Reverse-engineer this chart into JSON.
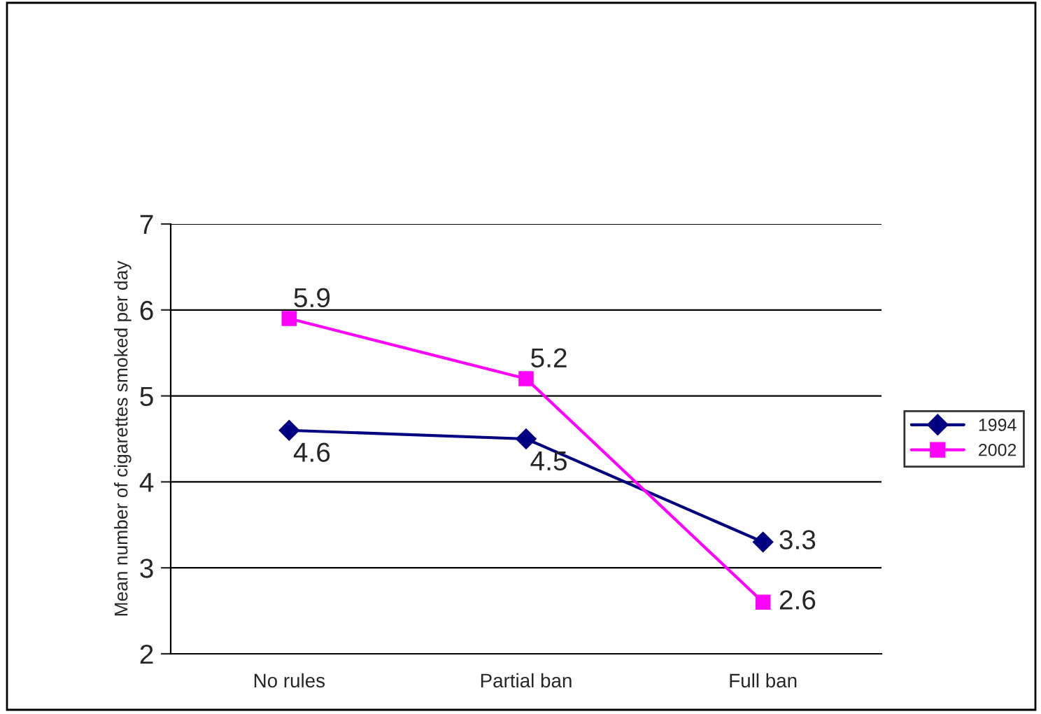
{
  "chart_data": {
    "type": "line",
    "ylabel": "Mean number of cigarettes smoked per day",
    "categories": [
      "No rules",
      "Partial ban",
      "Full ban"
    ],
    "series": [
      {
        "name": "1994",
        "color": "#000080",
        "marker": "diamond",
        "values": [
          4.6,
          4.5,
          3.3
        ]
      },
      {
        "name": "2002",
        "color": "#ff00ff",
        "marker": "square",
        "values": [
          5.9,
          5.2,
          2.6
        ]
      }
    ],
    "ylim": [
      2,
      7
    ],
    "yticks": [
      2,
      3,
      4,
      5,
      6,
      7
    ],
    "grid": "y",
    "legend": "right",
    "data_labels": true,
    "line_style": "solid"
  }
}
